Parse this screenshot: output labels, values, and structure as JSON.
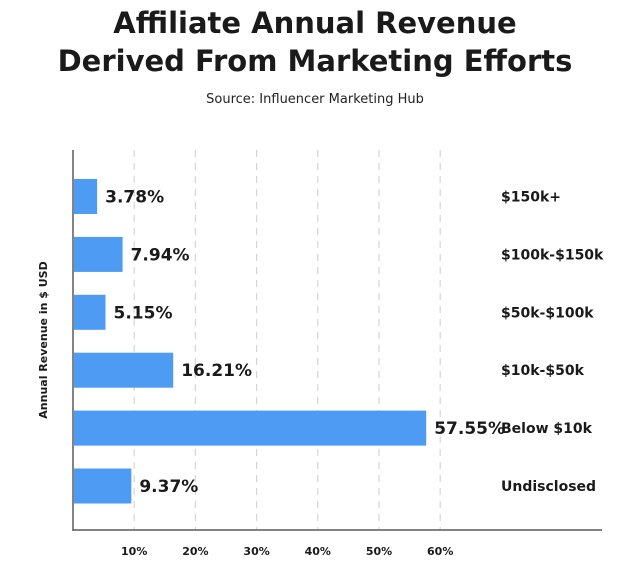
{
  "title_lines": [
    "Affiliate Annual Revenue",
    "Derived From Marketing Efforts"
  ],
  "subtitle": "Source: Influencer Marketing Hub",
  "colors": {
    "bar": "#4d9bf2",
    "axis": "#5a5a5a",
    "grid": "#d6d6d6",
    "text": "#1a1a1a"
  },
  "chart_data": {
    "type": "bar",
    "orientation": "horizontal",
    "categories": [
      "$150k+",
      "$100k-$150k",
      "$50k-$100k",
      "$10k-$50k",
      "Below $10k",
      "Undisclosed"
    ],
    "values": [
      3.78,
      7.94,
      5.15,
      16.21,
      57.55,
      9.37
    ],
    "value_labels": [
      "3.78%",
      "7.94%",
      "5.15%",
      "16.21%",
      "57.55%",
      "9.37%"
    ],
    "ylabel": "Annual Revenue in $ USD",
    "xlabel": "",
    "xlim": [
      0,
      85
    ],
    "xticks": [
      10,
      20,
      30,
      40,
      50,
      60
    ],
    "xtick_labels": [
      "10%",
      "20%",
      "30%",
      "40%",
      "50%",
      "60%"
    ],
    "grid": "vertical dashed"
  }
}
